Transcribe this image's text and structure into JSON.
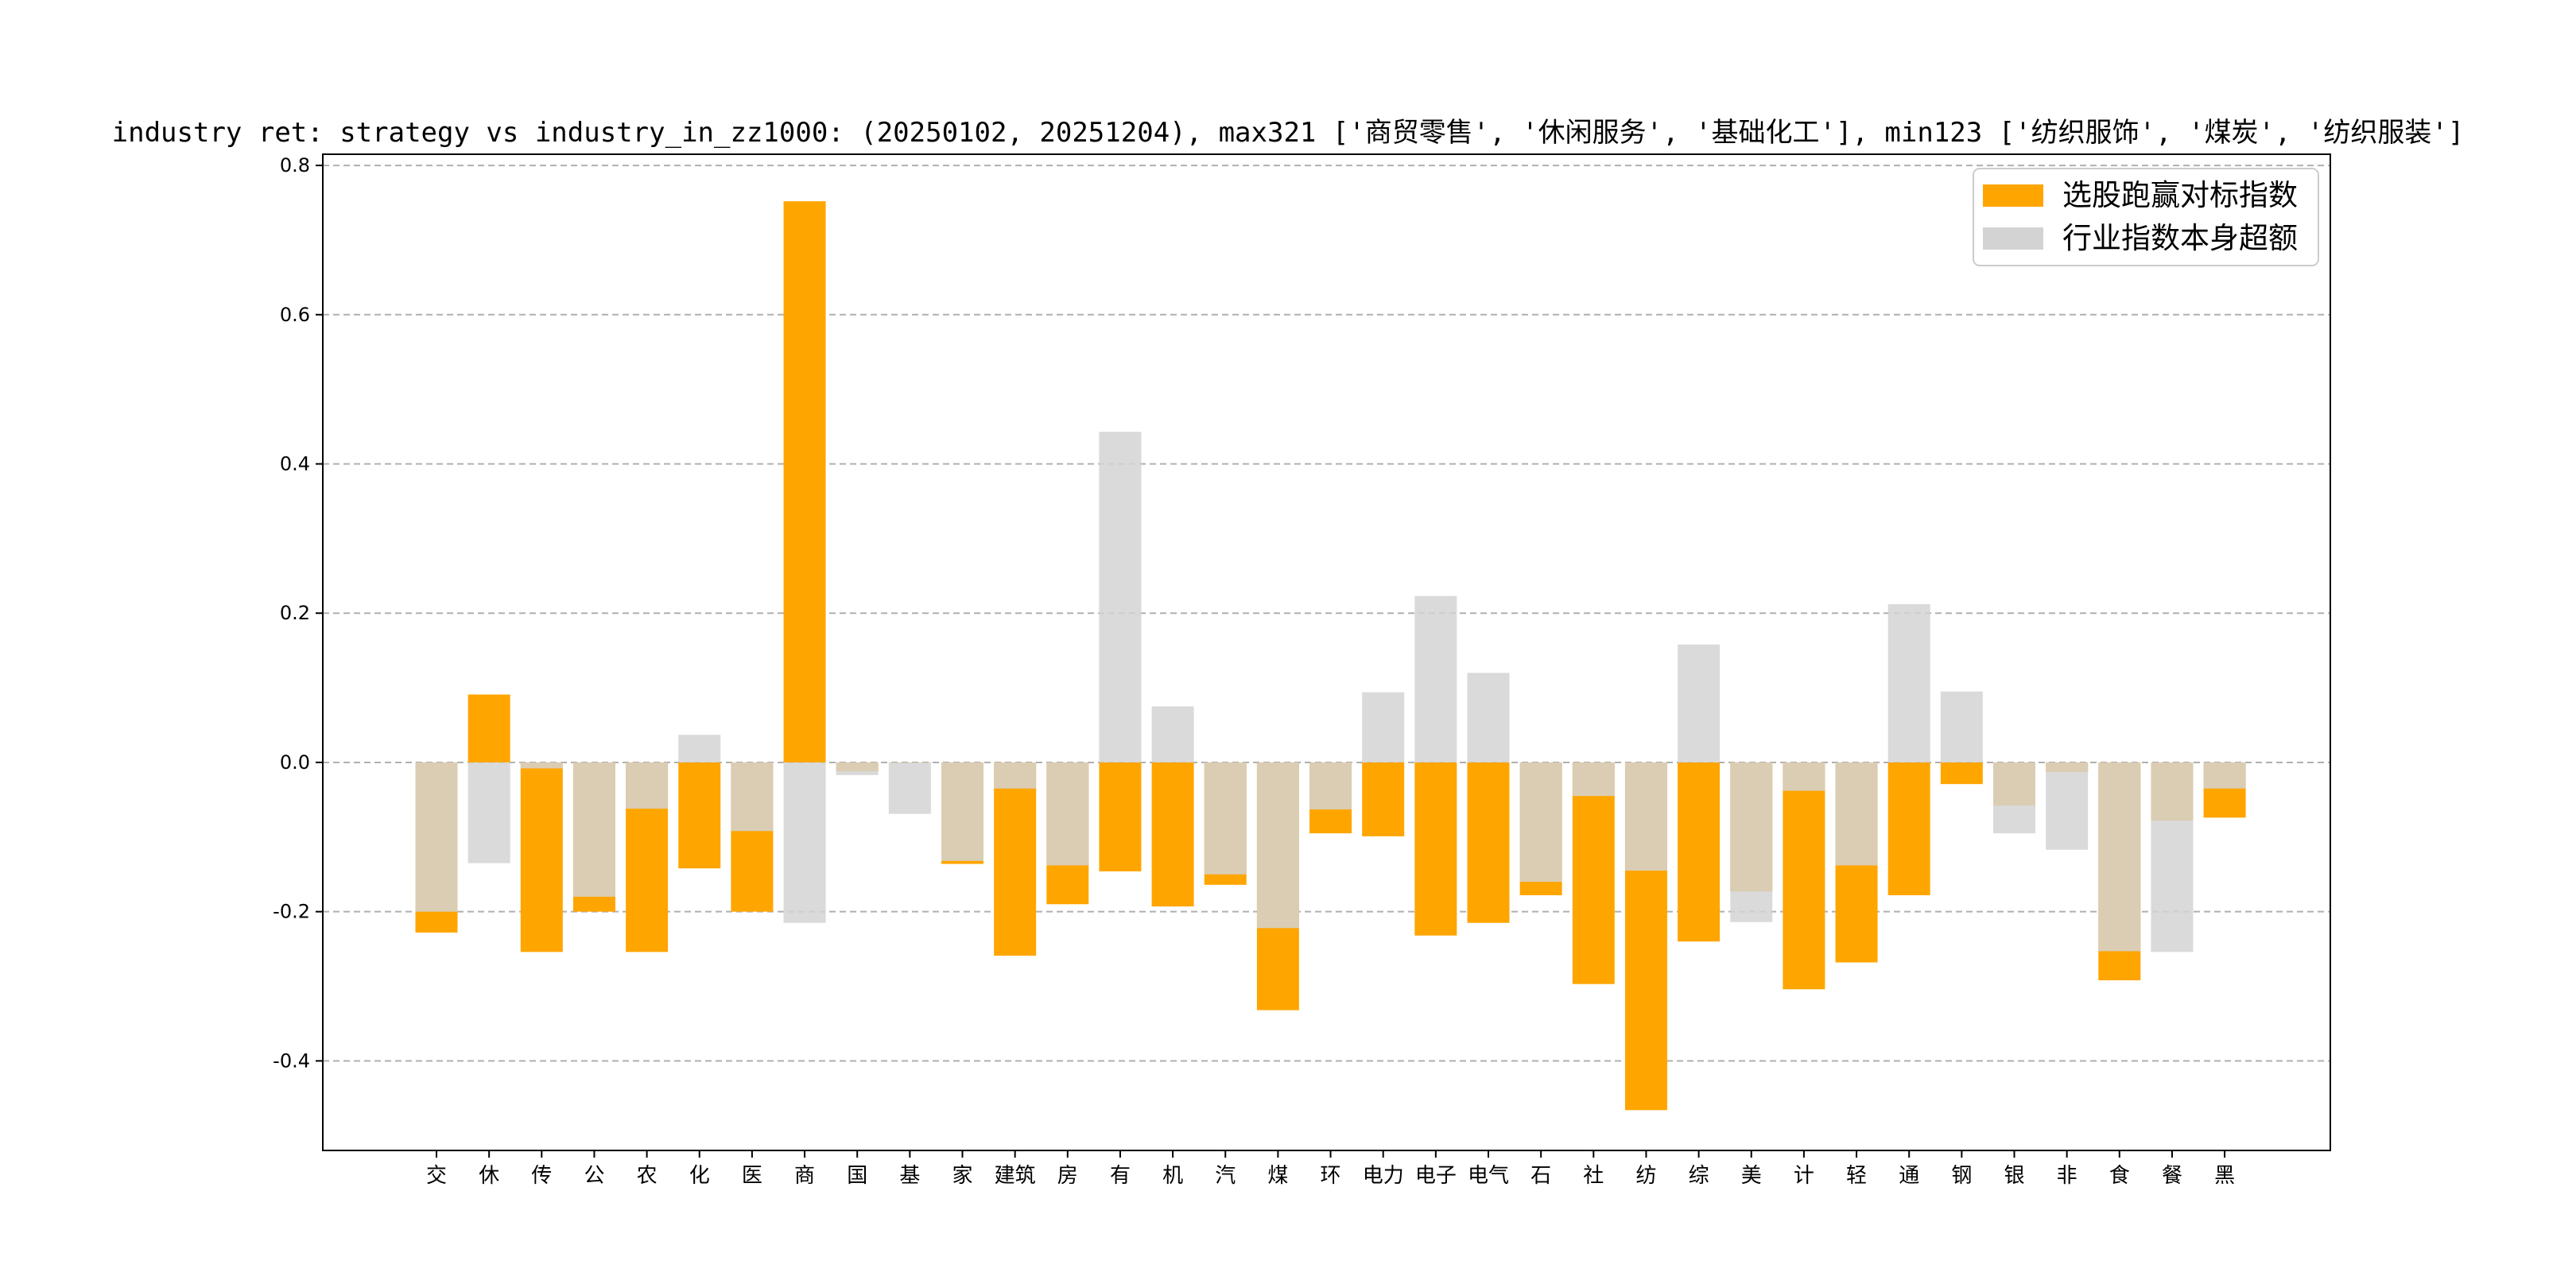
{
  "chart_data": {
    "type": "bar",
    "title": "industry ret: strategy vs industry_in_zz1000: (20250102, 20251204), max321 ['商贸零售', '休闲服务', '基础化工'], min123 ['纺织服饰', '煤炭', '纺织服装']",
    "xlabel": "",
    "ylabel": "",
    "ylim": [
      -0.52,
      0.815
    ],
    "yticks": [
      "-0.4",
      "-0.2",
      "0.0",
      "0.2",
      "0.4",
      "0.6",
      "0.8"
    ],
    "ytick_values": [
      -0.4,
      -0.2,
      0.0,
      0.2,
      0.4,
      0.6,
      0.8
    ],
    "grid": "y-dashed",
    "legend_placement": "top-right",
    "categories": [
      "交",
      "休",
      "传",
      "公",
      "农",
      "化",
      "医",
      "商",
      "国",
      "基",
      "家",
      "建筑",
      "房",
      "有",
      "机",
      "汽",
      "煤",
      "环",
      "电力",
      "电子",
      "电气",
      "石",
      "社",
      "纺",
      "综",
      "美",
      "计",
      "轻",
      "通",
      "钢",
      "银",
      "非",
      "食",
      "餐",
      "黑"
    ],
    "series": [
      {
        "name": "选股跑赢对标指数",
        "color": "#ffa500",
        "values": [
          -0.228,
          0.091,
          -0.254,
          -0.2,
          -0.254,
          -0.142,
          -0.2,
          0.752,
          -0.012,
          0.0,
          -0.136,
          -0.259,
          -0.19,
          -0.146,
          -0.193,
          -0.164,
          -0.332,
          -0.095,
          -0.099,
          -0.232,
          -0.215,
          -0.178,
          -0.297,
          -0.466,
          -0.24,
          -0.173,
          -0.304,
          -0.268,
          -0.178,
          -0.029,
          -0.058,
          -0.013,
          -0.292,
          -0.078,
          -0.074
        ]
      },
      {
        "name": "行业指数本身超额",
        "color": "#d3d3d3",
        "values": [
          -0.2,
          -0.135,
          -0.008,
          -0.18,
          -0.062,
          0.037,
          -0.092,
          -0.215,
          -0.017,
          -0.069,
          -0.132,
          -0.035,
          -0.138,
          0.443,
          0.075,
          -0.15,
          -0.222,
          -0.063,
          0.094,
          0.223,
          0.12,
          -0.16,
          -0.045,
          -0.145,
          0.158,
          -0.214,
          -0.038,
          -0.138,
          0.212,
          0.095,
          -0.095,
          -0.117,
          -0.253,
          -0.254,
          -0.035
        ]
      }
    ]
  }
}
